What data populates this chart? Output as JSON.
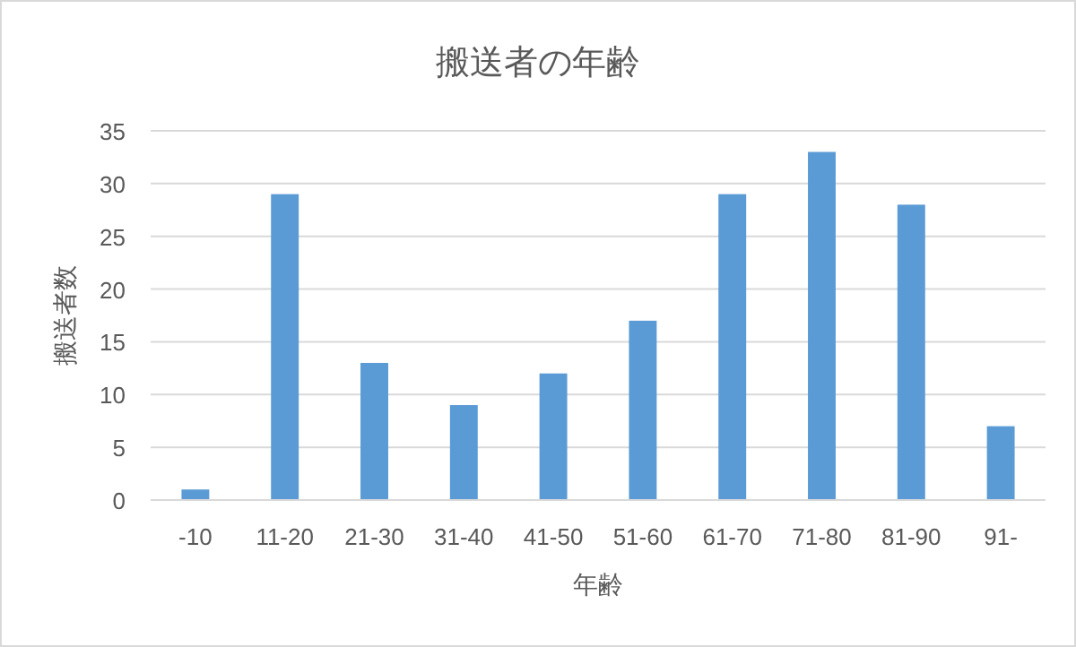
{
  "chart_data": {
    "type": "bar",
    "title": "搬送者の年齢",
    "xlabel": "年齢",
    "ylabel": "搬送者数",
    "categories": [
      "-10",
      "11-20",
      "21-30",
      "31-40",
      "41-50",
      "51-60",
      "61-70",
      "71-80",
      "81-90",
      "91-"
    ],
    "values": [
      1,
      29,
      13,
      9,
      12,
      17,
      29,
      33,
      28,
      7
    ],
    "color": "#5b9bd5",
    "ylim": [
      0,
      35
    ],
    "yticks": [
      0,
      5,
      10,
      15,
      20,
      25,
      30,
      35
    ],
    "grid": "y"
  }
}
